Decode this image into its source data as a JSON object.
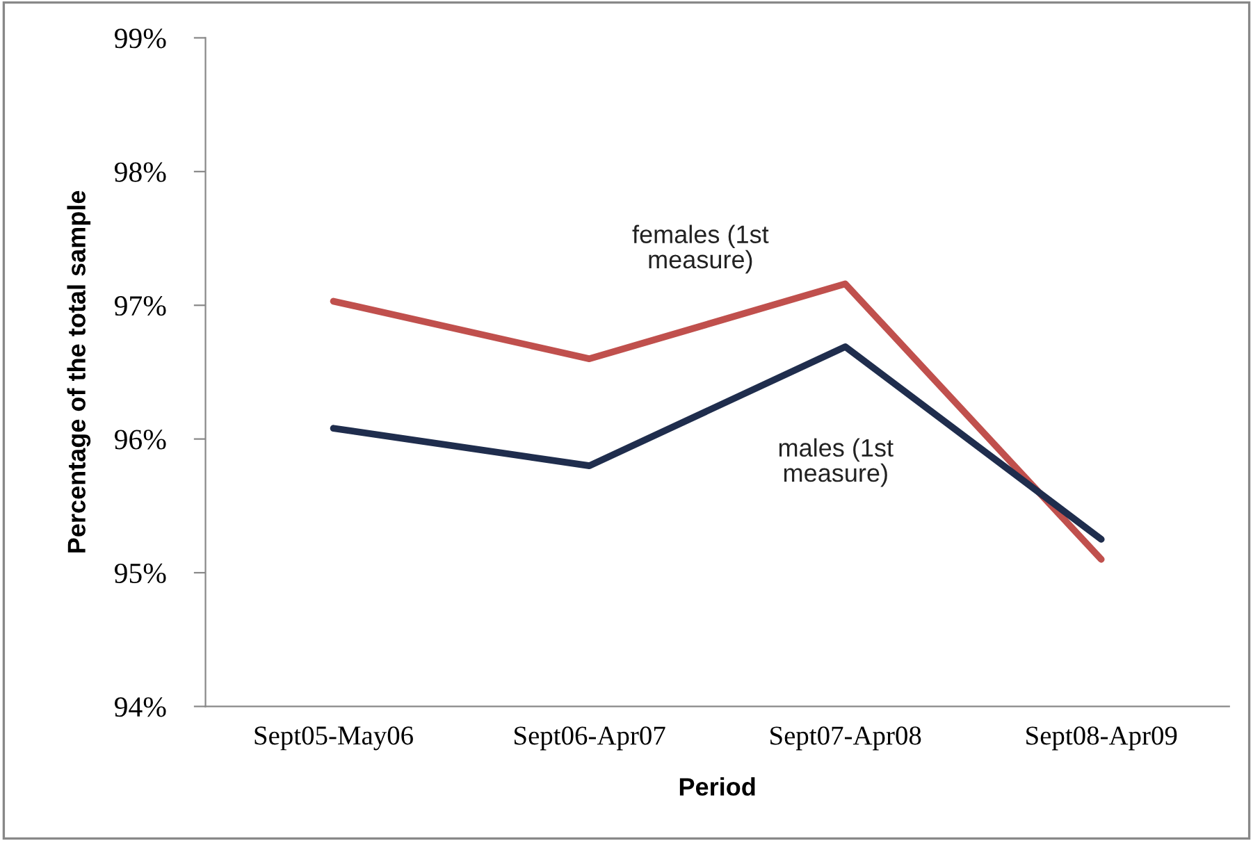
{
  "chart_data": {
    "type": "line",
    "xlabel": "Period",
    "ylabel": "Percentage of the total sample",
    "categories": [
      "Sept05-May06",
      "Sept06-Apr07",
      "Sept07-Apr08",
      "Sept08-Apr09"
    ],
    "series": [
      {
        "name": "females (1st measure)",
        "color": "#c0504d",
        "values": [
          97.03,
          96.6,
          97.16,
          95.1
        ]
      },
      {
        "name": "males (1st measure)",
        "color": "#1f2d4d",
        "values": [
          96.08,
          95.8,
          96.69,
          95.25
        ]
      }
    ],
    "ylim": [
      94,
      99
    ],
    "yticks": [
      {
        "value": 94,
        "label": "94%"
      },
      {
        "value": 95,
        "label": "95%"
      },
      {
        "value": 96,
        "label": "96%"
      },
      {
        "value": 97,
        "label": "97%"
      },
      {
        "value": 98,
        "label": "98%"
      },
      {
        "value": 99,
        "label": "99%"
      }
    ],
    "grid": false,
    "legend": false,
    "marker": "none",
    "line_style": "solid"
  }
}
